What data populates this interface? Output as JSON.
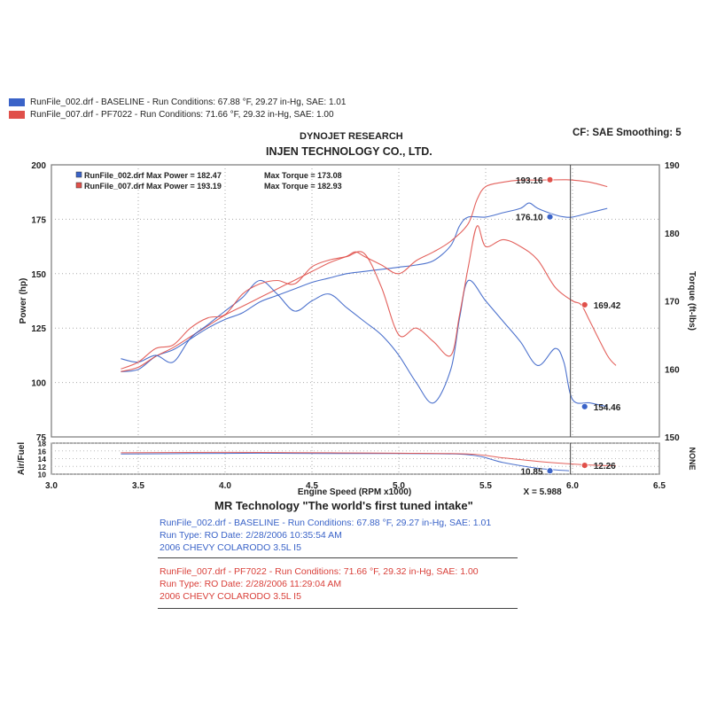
{
  "header": {
    "legend": [
      {
        "label": "RunFile_002.drf - BASELINE  -  Run Conditions: 67.88 °F, 29.27 in-Hg, SAE: 1.01",
        "color": "#3a63c8"
      },
      {
        "label": "RunFile_007.drf - PF7022  -  Run Conditions: 71.66 °F, 29.32 in-Hg, SAE: 1.00",
        "color": "#e0504a"
      }
    ],
    "company": "DYNOJET RESEARCH",
    "customer": "INJEN TECHNOLOGY CO., LTD.",
    "cf": "CF: SAE  Smoothing: 5"
  },
  "chart_data": {
    "type": "line",
    "xlabel": "Engine Speed (RPM x1000)",
    "xlim": [
      3.0,
      6.5
    ],
    "x_ticks": [
      "3.0",
      "3.5",
      "4.0",
      "4.5",
      "5.0",
      "5.5",
      "6.0",
      "6.5"
    ],
    "power_axis": {
      "label": "Power (hp)",
      "ylim": [
        75,
        200
      ],
      "ticks": [
        "75",
        "100",
        "125",
        "150",
        "175",
        "200"
      ]
    },
    "torque_axis": {
      "label": "Torque (ft-lbs)",
      "ylim": [
        150,
        190
      ],
      "ticks": [
        "150",
        "160",
        "170",
        "180",
        "190"
      ]
    },
    "af_axis": {
      "label": "Air/Fuel",
      "ylim": [
        10,
        18
      ],
      "ticks": [
        "10",
        "12",
        "14",
        "16",
        "18"
      ],
      "right_label": "NONE"
    },
    "inset_legend": [
      {
        "text": "RunFile_002.drf Max Power = 182.47",
        "torque": "Max Torque = 173.08",
        "color": "#3a63c8"
      },
      {
        "text": "RunFile_007.drf Max Power = 193.19",
        "torque": "Max Torque = 182.93",
        "color": "#e0504a"
      }
    ],
    "cursor": {
      "x": 5.988,
      "label": "X = 5.988"
    },
    "series": [
      {
        "name": "RunFile_002.drf",
        "kind": "power",
        "color": "#3a63c8",
        "points": [
          [
            3.4,
            105
          ],
          [
            3.5,
            106
          ],
          [
            3.6,
            112
          ],
          [
            3.7,
            115
          ],
          [
            3.8,
            120
          ],
          [
            3.9,
            125
          ],
          [
            4.0,
            129
          ],
          [
            4.1,
            132
          ],
          [
            4.2,
            137
          ],
          [
            4.3,
            140
          ],
          [
            4.4,
            143
          ],
          [
            4.5,
            146
          ],
          [
            4.6,
            148
          ],
          [
            4.7,
            150
          ],
          [
            4.8,
            151
          ],
          [
            4.9,
            152
          ],
          [
            5.0,
            153
          ],
          [
            5.1,
            154
          ],
          [
            5.2,
            156
          ],
          [
            5.3,
            163
          ],
          [
            5.35,
            172
          ],
          [
            5.4,
            176
          ],
          [
            5.5,
            176
          ],
          [
            5.6,
            178
          ],
          [
            5.7,
            180
          ],
          [
            5.75,
            182.47
          ],
          [
            5.8,
            180
          ],
          [
            5.9,
            177
          ],
          [
            5.95,
            176.1
          ],
          [
            6.0,
            176
          ],
          [
            6.1,
            178
          ],
          [
            6.2,
            180
          ]
        ]
      },
      {
        "name": "RunFile_007.drf",
        "kind": "power",
        "color": "#e0504a",
        "points": [
          [
            3.4,
            105
          ],
          [
            3.5,
            107
          ],
          [
            3.6,
            112
          ],
          [
            3.7,
            116
          ],
          [
            3.8,
            121
          ],
          [
            3.9,
            126
          ],
          [
            4.0,
            131
          ],
          [
            4.1,
            135
          ],
          [
            4.2,
            139
          ],
          [
            4.3,
            143
          ],
          [
            4.4,
            147
          ],
          [
            4.5,
            151
          ],
          [
            4.6,
            155
          ],
          [
            4.7,
            158
          ],
          [
            4.75,
            160
          ],
          [
            4.8,
            158
          ],
          [
            4.9,
            154
          ],
          [
            5.0,
            150
          ],
          [
            5.1,
            156
          ],
          [
            5.2,
            160
          ],
          [
            5.3,
            165
          ],
          [
            5.4,
            173
          ],
          [
            5.45,
            184
          ],
          [
            5.5,
            190
          ],
          [
            5.6,
            192
          ],
          [
            5.7,
            193
          ],
          [
            5.8,
            193
          ],
          [
            5.95,
            193.16
          ],
          [
            6.0,
            193
          ],
          [
            6.1,
            192
          ],
          [
            6.2,
            190
          ]
        ]
      },
      {
        "name": "RunFile_002.drf",
        "kind": "torque",
        "color": "#3a63c8",
        "points": [
          [
            3.4,
            161.5
          ],
          [
            3.5,
            161
          ],
          [
            3.6,
            162
          ],
          [
            3.7,
            161
          ],
          [
            3.8,
            164.5
          ],
          [
            3.9,
            166.5
          ],
          [
            4.0,
            168.5
          ],
          [
            4.1,
            170.5
          ],
          [
            4.2,
            173
          ],
          [
            4.3,
            171
          ],
          [
            4.4,
            168.5
          ],
          [
            4.5,
            170
          ],
          [
            4.6,
            171
          ],
          [
            4.7,
            169
          ],
          [
            4.8,
            167
          ],
          [
            4.9,
            165
          ],
          [
            5.0,
            162
          ],
          [
            5.1,
            158
          ],
          [
            5.2,
            155
          ],
          [
            5.3,
            160
          ],
          [
            5.35,
            167.5
          ],
          [
            5.4,
            173
          ],
          [
            5.5,
            170
          ],
          [
            5.6,
            167
          ],
          [
            5.7,
            164
          ],
          [
            5.8,
            160.5
          ],
          [
            5.9,
            163
          ],
          [
            5.95,
            161
          ],
          [
            6.0,
            155.5
          ],
          [
            6.1,
            155
          ],
          [
            6.2,
            154.46
          ]
        ]
      },
      {
        "name": "RunFile_007.drf",
        "kind": "torque",
        "color": "#e0504a",
        "points": [
          [
            3.4,
            160
          ],
          [
            3.5,
            161
          ],
          [
            3.6,
            163
          ],
          [
            3.7,
            163.5
          ],
          [
            3.8,
            166
          ],
          [
            3.9,
            167.5
          ],
          [
            4.0,
            168
          ],
          [
            4.1,
            171
          ],
          [
            4.2,
            172.5
          ],
          [
            4.3,
            173
          ],
          [
            4.4,
            172.5
          ],
          [
            4.5,
            175
          ],
          [
            4.6,
            176
          ],
          [
            4.7,
            176.5
          ],
          [
            4.8,
            177
          ],
          [
            4.9,
            172
          ],
          [
            5.0,
            165
          ],
          [
            5.1,
            166
          ],
          [
            5.2,
            164
          ],
          [
            5.3,
            162
          ],
          [
            5.35,
            168
          ],
          [
            5.4,
            175
          ],
          [
            5.45,
            181
          ],
          [
            5.5,
            178
          ],
          [
            5.6,
            179
          ],
          [
            5.7,
            178
          ],
          [
            5.8,
            176
          ],
          [
            5.9,
            172
          ],
          [
            6.0,
            170
          ],
          [
            6.05,
            169.42
          ],
          [
            6.1,
            167
          ],
          [
            6.2,
            162
          ],
          [
            6.25,
            160.5
          ]
        ]
      },
      {
        "name": "RunFile_002.drf",
        "kind": "airfuel",
        "color": "#3a63c8",
        "points": [
          [
            3.4,
            15.2
          ],
          [
            3.8,
            15.3
          ],
          [
            4.2,
            15.4
          ],
          [
            4.6,
            15.3
          ],
          [
            5.0,
            15.3
          ],
          [
            5.4,
            15
          ],
          [
            5.6,
            13
          ],
          [
            5.8,
            11.5
          ],
          [
            5.98,
            10.85
          ]
        ]
      },
      {
        "name": "RunFile_007.drf",
        "kind": "airfuel",
        "color": "#e0504a",
        "points": [
          [
            3.4,
            15.5
          ],
          [
            3.8,
            15.6
          ],
          [
            4.2,
            15.6
          ],
          [
            4.6,
            15.5
          ],
          [
            5.0,
            15.4
          ],
          [
            5.4,
            15.2
          ],
          [
            5.6,
            14.2
          ],
          [
            5.8,
            13.3
          ],
          [
            6.0,
            12.6
          ],
          [
            6.15,
            12.26
          ],
          [
            6.25,
            12.2
          ]
        ]
      }
    ],
    "markers": [
      {
        "x": 5.87,
        "y": 193.16,
        "axis": "power",
        "text": "193.16",
        "color": "#e0504a"
      },
      {
        "x": 5.87,
        "y": 176.1,
        "axis": "power",
        "text": "176.10",
        "color": "#3a63c8"
      },
      {
        "x": 6.07,
        "y": 169.42,
        "axis": "torque",
        "text": "169.42",
        "color": "#e0504a"
      },
      {
        "x": 6.07,
        "y": 154.46,
        "axis": "torque",
        "text": "154.46",
        "color": "#3a63c8"
      },
      {
        "x": 5.87,
        "y": 10.85,
        "axis": "airfuel",
        "text": "10.85",
        "color": "#3a63c8"
      },
      {
        "x": 6.07,
        "y": 12.26,
        "axis": "airfuel",
        "text": "12.26",
        "color": "#e0504a"
      }
    ]
  },
  "footer": {
    "title": "MR Technology \"The world's first tuned intake\"",
    "blue": [
      "RunFile_002.drf - BASELINE  -  Run Conditions: 67.88 °F, 29.27 in-Hg, SAE: 1.01",
      "Run Type: RO  Date: 2/28/2006 10:35:54 AM",
      "2006 CHEVY COLARODO 3.5L I5"
    ],
    "red": [
      "RunFile_007.drf - PF7022  -  Run Conditions: 71.66 °F, 29.32 in-Hg, SAE: 1.00",
      "Run Type: RO  Date: 2/28/2006 11:29:04 AM",
      "2006 CHEVY COLARODO 3.5L I5"
    ]
  }
}
